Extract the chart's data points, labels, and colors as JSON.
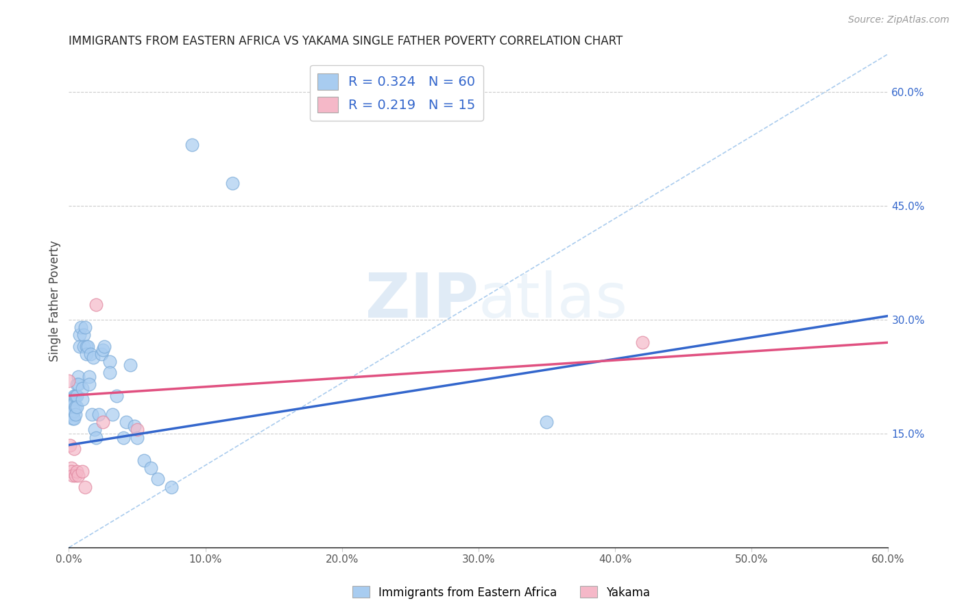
{
  "title": "IMMIGRANTS FROM EASTERN AFRICA VS YAKAMA SINGLE FATHER POVERTY CORRELATION CHART",
  "source": "Source: ZipAtlas.com",
  "ylabel": "Single Father Poverty",
  "legend_blue_r": "0.324",
  "legend_blue_n": "60",
  "legend_pink_r": "0.219",
  "legend_pink_n": "15",
  "xlim": [
    0.0,
    0.6
  ],
  "ylim": [
    0.0,
    0.65
  ],
  "ytick_right_labels": [
    "15.0%",
    "30.0%",
    "45.0%",
    "60.0%"
  ],
  "ytick_right_values": [
    0.15,
    0.3,
    0.45,
    0.6
  ],
  "blue_color": "#A8CCF0",
  "blue_edge_color": "#7AAAD8",
  "blue_line_color": "#3366CC",
  "pink_color": "#F5B8C8",
  "pink_edge_color": "#E088A0",
  "pink_line_color": "#E05080",
  "diag_color": "#AACCEE",
  "blue_scatter_x": [
    0.0,
    0.001,
    0.001,
    0.002,
    0.002,
    0.002,
    0.003,
    0.003,
    0.003,
    0.003,
    0.004,
    0.004,
    0.004,
    0.004,
    0.005,
    0.005,
    0.005,
    0.006,
    0.006,
    0.006,
    0.007,
    0.007,
    0.008,
    0.008,
    0.009,
    0.01,
    0.01,
    0.011,
    0.011,
    0.012,
    0.013,
    0.013,
    0.014,
    0.015,
    0.015,
    0.016,
    0.017,
    0.018,
    0.019,
    0.02,
    0.022,
    0.024,
    0.025,
    0.026,
    0.03,
    0.03,
    0.032,
    0.035,
    0.04,
    0.042,
    0.045,
    0.048,
    0.05,
    0.055,
    0.06,
    0.065,
    0.075,
    0.09,
    0.12,
    0.35
  ],
  "blue_scatter_y": [
    0.195,
    0.19,
    0.185,
    0.195,
    0.185,
    0.175,
    0.195,
    0.19,
    0.182,
    0.17,
    0.2,
    0.19,
    0.18,
    0.17,
    0.2,
    0.185,
    0.175,
    0.215,
    0.2,
    0.185,
    0.225,
    0.215,
    0.28,
    0.265,
    0.29,
    0.21,
    0.195,
    0.28,
    0.265,
    0.29,
    0.265,
    0.255,
    0.265,
    0.225,
    0.215,
    0.255,
    0.175,
    0.25,
    0.155,
    0.145,
    0.175,
    0.255,
    0.26,
    0.265,
    0.245,
    0.23,
    0.175,
    0.2,
    0.145,
    0.165,
    0.24,
    0.16,
    0.145,
    0.115,
    0.105,
    0.09,
    0.08,
    0.53,
    0.48,
    0.165
  ],
  "pink_scatter_x": [
    0.0,
    0.001,
    0.002,
    0.002,
    0.003,
    0.004,
    0.005,
    0.006,
    0.007,
    0.01,
    0.012,
    0.02,
    0.025,
    0.42,
    0.05
  ],
  "pink_scatter_y": [
    0.22,
    0.135,
    0.105,
    0.1,
    0.095,
    0.13,
    0.095,
    0.1,
    0.095,
    0.1,
    0.08,
    0.32,
    0.165,
    0.27,
    0.155
  ],
  "blue_line_x0": 0.0,
  "blue_line_x1": 0.6,
  "blue_line_y0": 0.135,
  "blue_line_y1": 0.305,
  "pink_line_x0": 0.0,
  "pink_line_x1": 0.6,
  "pink_line_y0": 0.2,
  "pink_line_y1": 0.27,
  "diag_line_x0": 0.0,
  "diag_line_x1": 0.6,
  "diag_line_y0": 0.0,
  "diag_line_y1": 0.65,
  "watermark_zip": "ZIP",
  "watermark_atlas": "atlas",
  "legend_label_blue": "Immigrants from Eastern Africa",
  "legend_label_pink": "Yakama"
}
